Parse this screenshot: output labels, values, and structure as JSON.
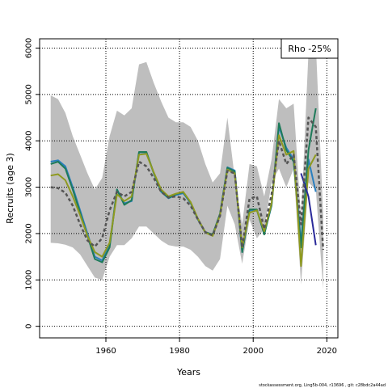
{
  "chart_data": {
    "type": "line",
    "title": "",
    "xlabel": "Years",
    "ylabel": "Recruits (age 3)",
    "xlim": [
      1942,
      2023
    ],
    "ylim": [
      -250,
      6200
    ],
    "x_ticks": [
      1960,
      1980,
      2000,
      2020
    ],
    "y_ticks": [
      0,
      1000,
      2000,
      3000,
      4000,
      5000,
      6000
    ],
    "grid": true,
    "grid_style": "dotted",
    "legend": {
      "text": "Rho -25%",
      "placement": "top-right"
    },
    "band": {
      "color": "#bebebe",
      "x": [
        1945,
        1947,
        1949,
        1951,
        1953,
        1955,
        1957,
        1959,
        1961,
        1963,
        1965,
        1967,
        1969,
        1971,
        1973,
        1975,
        1977,
        1979,
        1981,
        1983,
        1985,
        1987,
        1989,
        1991,
        1993,
        1995,
        1997,
        1999,
        2001,
        2003,
        2005,
        2007,
        2009,
        2011,
        2013,
        2015,
        2017,
        2019
      ],
      "upper": [
        4980,
        4900,
        4600,
        4100,
        3700,
        3300,
        2950,
        3200,
        4100,
        4650,
        4550,
        4700,
        5650,
        5700,
        5250,
        4850,
        4500,
        4400,
        4400,
        4300,
        4000,
        3500,
        3100,
        3300,
        4500,
        3200,
        2200,
        3500,
        3450,
        2800,
        3600,
        4900,
        4700,
        4800,
        2300,
        5900,
        6100,
        2400
      ],
      "lower": [
        1800,
        1790,
        1760,
        1700,
        1550,
        1300,
        1050,
        1000,
        1500,
        1750,
        1750,
        1900,
        2150,
        2150,
        2000,
        1850,
        1750,
        1720,
        1720,
        1650,
        1500,
        1300,
        1200,
        1450,
        2600,
        2200,
        1350,
        2300,
        1900,
        2100,
        3100,
        3400,
        3000,
        3400,
        900,
        3100,
        2950,
        800
      ]
    },
    "x": [
      1945,
      1947,
      1949,
      1951,
      1953,
      1955,
      1957,
      1959,
      1961,
      1963,
      1965,
      1967,
      1969,
      1971,
      1973,
      1975,
      1977,
      1979,
      1981,
      1983,
      1985,
      1987,
      1989,
      1991,
      1993,
      1995,
      1997,
      1999,
      2001,
      2003,
      2005,
      2007,
      2009,
      2011,
      2013,
      2015,
      2017,
      2019
    ],
    "series": [
      {
        "color": "#2a7fbf",
        "values": [
          3550,
          3580,
          3450,
          3000,
          2500,
          2000,
          1500,
          1420,
          1750,
          2950,
          2650,
          2700,
          3750,
          3750,
          3300,
          2900,
          2760,
          2830,
          2870,
          2660,
          2300,
          2020,
          1970,
          2420,
          3430,
          3360,
          1600,
          2500,
          2500,
          2000,
          2600,
          4300,
          3850,
          3600,
          1800,
          3600,
          2900,
          null
        ]
      },
      {
        "color": "#1e7b5a",
        "values": [
          3500,
          3550,
          3400,
          2950,
          2450,
          1950,
          1450,
          1380,
          1700,
          2950,
          2620,
          2720,
          3760,
          3760,
          3310,
          2920,
          2770,
          2850,
          2890,
          2670,
          2310,
          2030,
          1980,
          2430,
          3420,
          3340,
          1600,
          2520,
          2520,
          1980,
          2620,
          4380,
          3800,
          3550,
          1700,
          3800,
          4700,
          null
        ]
      },
      {
        "color": "#8f9a20",
        "values": [
          3250,
          3280,
          3150,
          2800,
          2400,
          1950,
          1600,
          1500,
          1800,
          2850,
          2700,
          2800,
          3700,
          3720,
          3320,
          2950,
          2800,
          2860,
          2900,
          2680,
          2320,
          2020,
          1950,
          2400,
          3380,
          3300,
          1700,
          2450,
          2500,
          2050,
          2650,
          4120,
          3700,
          3780,
          1300,
          3400,
          3700,
          null
        ]
      },
      {
        "color": "#2a2a9a",
        "values": [
          null,
          null,
          null,
          null,
          null,
          null,
          null,
          null,
          null,
          null,
          null,
          null,
          null,
          null,
          null,
          null,
          null,
          null,
          null,
          null,
          null,
          null,
          null,
          null,
          null,
          null,
          null,
          null,
          null,
          null,
          null,
          null,
          null,
          null,
          3300,
          2800,
          1750,
          null
        ]
      },
      {
        "color": "#555555",
        "dashed": true,
        "values": [
          3000,
          2980,
          2880,
          2600,
          2200,
          1850,
          1720,
          1900,
          2500,
          2900,
          2800,
          2900,
          3550,
          3450,
          3200,
          2900,
          2780,
          2800,
          2760,
          2600,
          2300,
          2030,
          1960,
          2380,
          3350,
          3300,
          1700,
          2750,
          2800,
          2100,
          2850,
          4000,
          3500,
          3700,
          2200,
          4500,
          4300,
          1650
        ]
      }
    ]
  },
  "footer": "stockassessment.org, Ling5b-004, r13696 , git: c28bdc2a44ad"
}
